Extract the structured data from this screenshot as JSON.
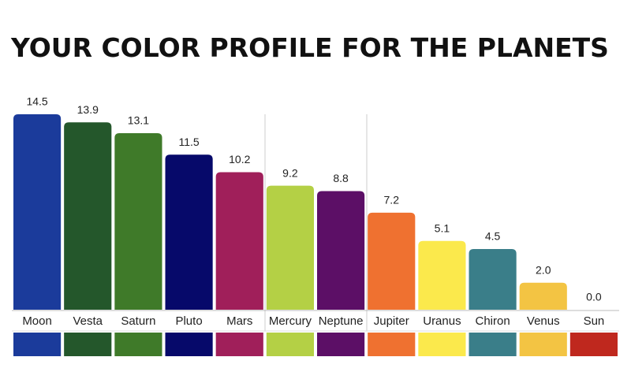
{
  "chart_data": {
    "type": "bar",
    "title": "YOUR COLOR PROFILE FOR THE PLANETS",
    "categories": [
      "Moon",
      "Vesta",
      "Saturn",
      "Pluto",
      "Mars",
      "Mercury",
      "Neptune",
      "Jupiter",
      "Uranus",
      "Chiron",
      "Venus",
      "Sun"
    ],
    "values": [
      14.5,
      13.9,
      13.1,
      11.5,
      10.2,
      9.2,
      8.8,
      7.2,
      5.1,
      4.5,
      2.0,
      0.0
    ],
    "value_labels": [
      "14.5",
      "13.9",
      "13.1",
      "11.5",
      "10.2",
      "9.2",
      "8.8",
      "7.2",
      "5.1",
      "4.5",
      "2.0",
      "0.0"
    ],
    "colors": [
      "#1b3b9b",
      "#24572b",
      "#3f7a29",
      "#06096a",
      "#a01f5a",
      "#b4d045",
      "#5c0f66",
      "#ef7130",
      "#fbe94c",
      "#3a7e89",
      "#f3c443",
      "#bf281e"
    ]
  }
}
